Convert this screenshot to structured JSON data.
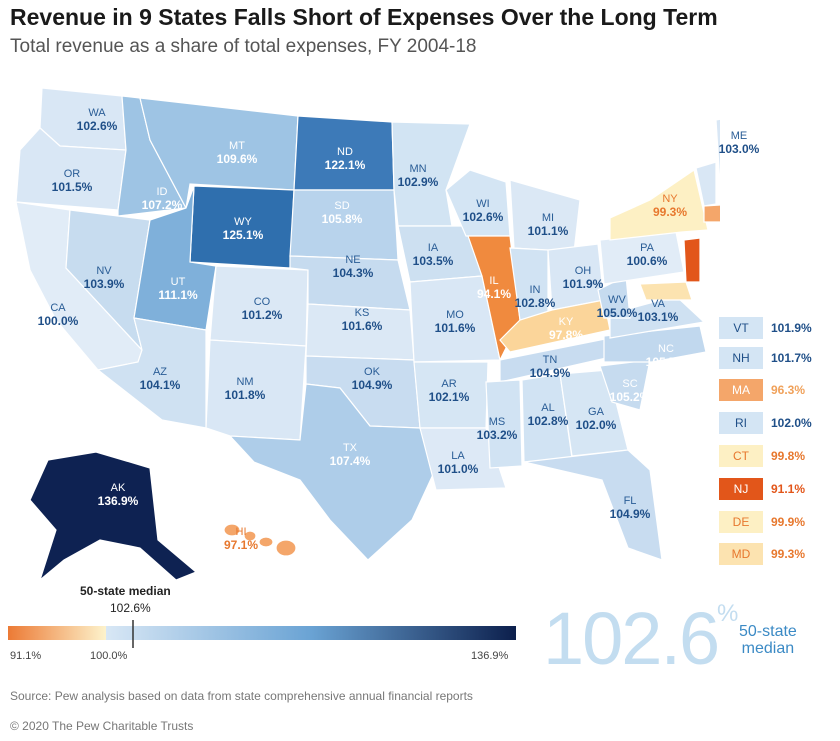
{
  "title": "Revenue in 9 States Falls Short of Expenses Over the Long Term",
  "subtitle": "Total revenue as a share of total expenses, FY 2004-18",
  "states": [
    {
      "abbr": "WA",
      "value": "102.6%"
    },
    {
      "abbr": "OR",
      "value": "101.5%"
    },
    {
      "abbr": "CA",
      "value": "100.0%"
    },
    {
      "abbr": "ID",
      "value": "107.2%"
    },
    {
      "abbr": "NV",
      "value": "103.9%"
    },
    {
      "abbr": "MT",
      "value": "109.6%"
    },
    {
      "abbr": "WY",
      "value": "125.1%"
    },
    {
      "abbr": "UT",
      "value": "111.1%"
    },
    {
      "abbr": "AZ",
      "value": "104.1%"
    },
    {
      "abbr": "CO",
      "value": "101.2%"
    },
    {
      "abbr": "NM",
      "value": "101.8%"
    },
    {
      "abbr": "ND",
      "value": "122.1%"
    },
    {
      "abbr": "SD",
      "value": "105.8%"
    },
    {
      "abbr": "NE",
      "value": "104.3%"
    },
    {
      "abbr": "KS",
      "value": "101.6%"
    },
    {
      "abbr": "OK",
      "value": "104.9%"
    },
    {
      "abbr": "TX",
      "value": "107.4%"
    },
    {
      "abbr": "MN",
      "value": "102.9%"
    },
    {
      "abbr": "IA",
      "value": "103.5%"
    },
    {
      "abbr": "MO",
      "value": "101.6%"
    },
    {
      "abbr": "AR",
      "value": "102.1%"
    },
    {
      "abbr": "LA",
      "value": "101.0%"
    },
    {
      "abbr": "WI",
      "value": "102.6%"
    },
    {
      "abbr": "IL",
      "value": "94.1%"
    },
    {
      "abbr": "MI",
      "value": "101.1%"
    },
    {
      "abbr": "IN",
      "value": "102.8%"
    },
    {
      "abbr": "OH",
      "value": "101.9%"
    },
    {
      "abbr": "KY",
      "value": "97.8%"
    },
    {
      "abbr": "TN",
      "value": "104.9%"
    },
    {
      "abbr": "MS",
      "value": "103.2%"
    },
    {
      "abbr": "AL",
      "value": "102.8%"
    },
    {
      "abbr": "GA",
      "value": "102.0%"
    },
    {
      "abbr": "FL",
      "value": "104.9%"
    },
    {
      "abbr": "SC",
      "value": "105.2%"
    },
    {
      "abbr": "NC",
      "value": "105.7%"
    },
    {
      "abbr": "VA",
      "value": "103.1%"
    },
    {
      "abbr": "WV",
      "value": "105.0%"
    },
    {
      "abbr": "PA",
      "value": "100.6%"
    },
    {
      "abbr": "NY",
      "value": "99.3%"
    },
    {
      "abbr": "ME",
      "value": "103.0%"
    },
    {
      "abbr": "AK",
      "value": "136.9%"
    },
    {
      "abbr": "HI",
      "value": "97.1%"
    }
  ],
  "small_states": [
    {
      "abbr": "VT",
      "value": "101.9%",
      "color": "#d4e5f4",
      "text_color": "#1f4f88"
    },
    {
      "abbr": "NH",
      "value": "101.7%",
      "color": "#d4e5f4",
      "text_color": "#1f4f88"
    },
    {
      "abbr": "MA",
      "value": "96.3%",
      "color": "#f4a66a",
      "text_color": "#e7782e"
    },
    {
      "abbr": "RI",
      "value": "102.0%",
      "color": "#d4e5f4",
      "text_color": "#1f4f88"
    },
    {
      "abbr": "CT",
      "value": "99.8%",
      "color": "#fdf0c4",
      "text_color": "#e7782e"
    },
    {
      "abbr": "NJ",
      "value": "91.1%",
      "color": "#e8591b",
      "text_color": "#e7782e"
    },
    {
      "abbr": "DE",
      "value": "99.9%",
      "color": "#fdf0c4",
      "text_color": "#e7782e"
    },
    {
      "abbr": "MD",
      "value": "99.3%",
      "color": "#fce3b0",
      "text_color": "#e7782e"
    }
  ],
  "legend": {
    "median_label": "50-state median",
    "median_value": "102.6%",
    "min_label": "91.1%",
    "mid_label": "100.0%",
    "max_label": "136.9%",
    "low_color": "#ec7a35",
    "mid_color": "#fdf3cc",
    "high_color": "#0c1f4c"
  },
  "big_median": {
    "value": "102.6",
    "unit": "%",
    "caption_line1": "50-state",
    "caption_line2": "median"
  },
  "source": "Source: Pew analysis based on data from state comprehensive annual financial reports",
  "copyright": "© 2020 The Pew Charitable Trusts"
}
